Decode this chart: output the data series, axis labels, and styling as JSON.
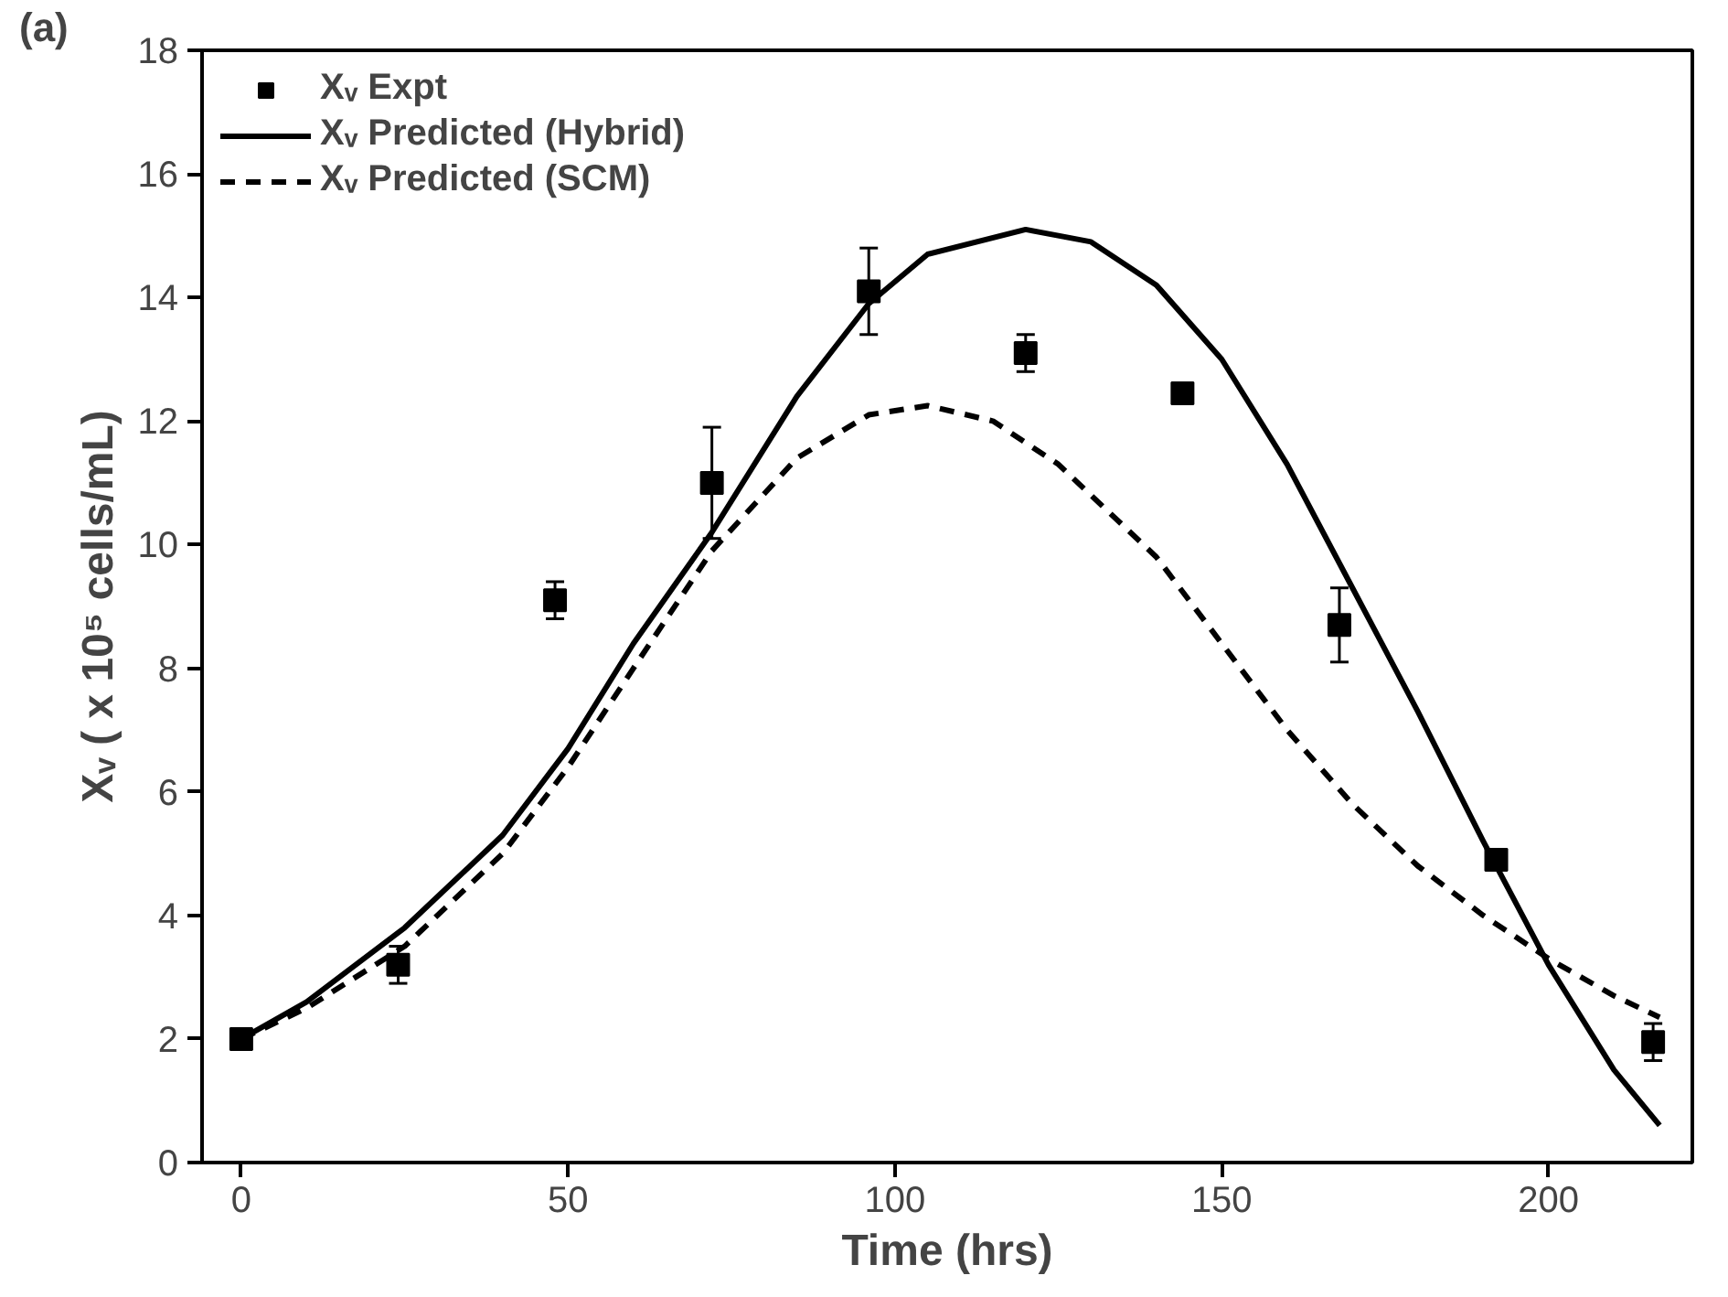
{
  "chart_data": {
    "type": "scatter",
    "xlabel": "Time (hrs)",
    "ylabel": "Xᵥ ( x 10⁵ cells/mL)",
    "annotations": [
      "(a)"
    ],
    "xlim": [
      -6,
      222
    ],
    "ylim": [
      0,
      18
    ],
    "xticks": [
      0,
      50,
      100,
      150,
      200
    ],
    "yticks": [
      0,
      2,
      4,
      6,
      8,
      10,
      12,
      14,
      16,
      18
    ],
    "grid": false,
    "legend": "top left",
    "series": [
      {
        "name": "Xᵥ Expt",
        "marker": "square",
        "color": "#000000",
        "x": [
          0,
          24,
          48,
          72,
          96,
          120,
          144,
          168,
          192,
          216
        ],
        "values": [
          2.0,
          3.2,
          9.1,
          11.0,
          14.1,
          13.1,
          12.45,
          8.7,
          4.9,
          1.95
        ],
        "errors": [
          0.1,
          0.3,
          0.3,
          0.9,
          0.7,
          0.3,
          0.15,
          0.6,
          0.1,
          0.3
        ]
      },
      {
        "name": "Xᵥ Predicted (Hybrid)",
        "type": "line",
        "line_style": "solid",
        "color": "#000000",
        "x": [
          0,
          10,
          25,
          40,
          50,
          60,
          72,
          85,
          96,
          105,
          120,
          130,
          140,
          150,
          160,
          170,
          180,
          190,
          200,
          210,
          217
        ],
        "values": [
          2.0,
          2.6,
          3.8,
          5.3,
          6.7,
          8.4,
          10.2,
          12.4,
          13.9,
          14.7,
          15.1,
          14.9,
          14.2,
          13.0,
          11.3,
          9.3,
          7.3,
          5.2,
          3.2,
          1.5,
          0.6
        ]
      },
      {
        "name": "Xᵥ Predicted (SCM)",
        "type": "line",
        "line_style": "dashed",
        "color": "#000000",
        "x": [
          0,
          10,
          25,
          40,
          50,
          60,
          72,
          85,
          96,
          105,
          115,
          125,
          140,
          150,
          160,
          170,
          180,
          190,
          200,
          210,
          217
        ],
        "values": [
          2.0,
          2.5,
          3.5,
          5.0,
          6.4,
          8.0,
          9.9,
          11.4,
          12.1,
          12.25,
          12.0,
          11.3,
          9.8,
          8.4,
          7.0,
          5.8,
          4.8,
          4.0,
          3.3,
          2.7,
          2.35
        ]
      }
    ]
  }
}
